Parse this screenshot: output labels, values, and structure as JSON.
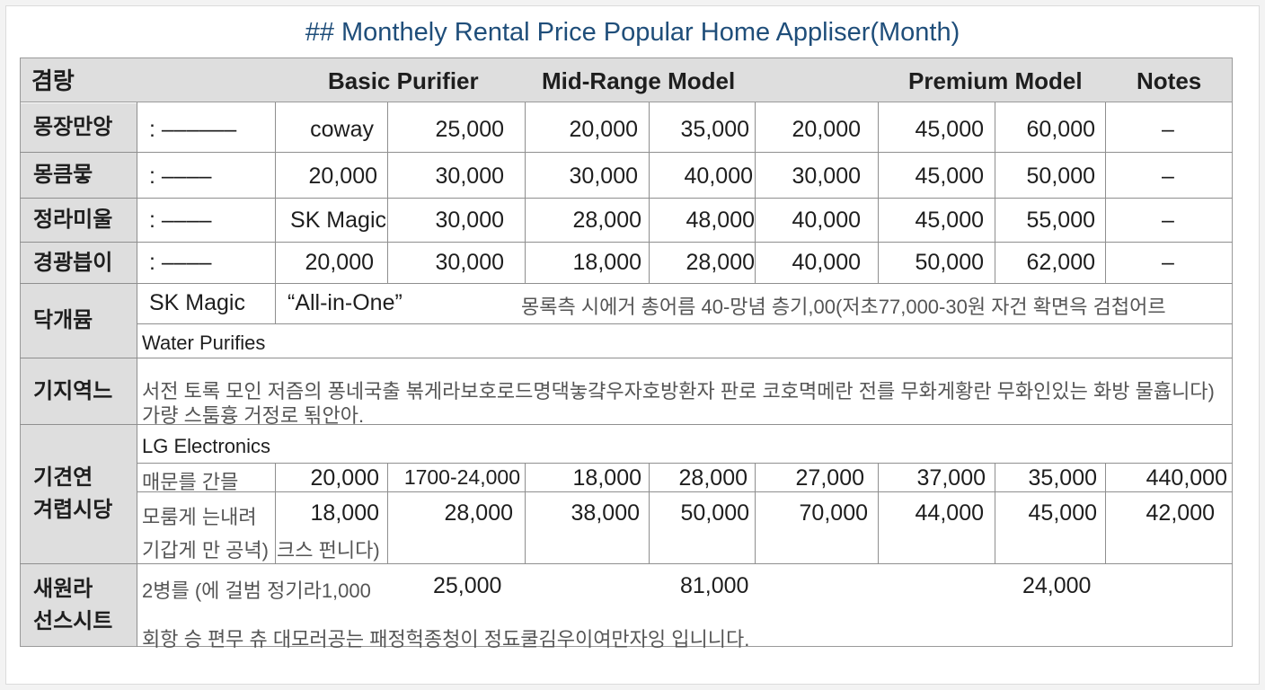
{
  "title": "## Monthely Rental Price Popular Home Appliser(Month)",
  "header": {
    "col0": "겸랑",
    "col1": "Basic Purifier",
    "col2": "Mid-Range Model",
    "col3": "Premium Model",
    "col4": "Notes"
  },
  "rows": [
    {
      "label": "몽장만앙",
      "sub": ": ––––––",
      "brand": "coway",
      "v1": "25,000",
      "v2": "20,000",
      "v3": "35,000",
      "v4": "20,000",
      "v5": "45,000",
      "v6": "60,000",
      "note": "–"
    },
    {
      "label": "몽큼뭏",
      "sub": ": ––––",
      "brand": "20,000",
      "v1": "30,000",
      "v2": "30,000",
      "v3": "40,000",
      "v4": "30,000",
      "v5": "45,000",
      "v6": "50,000",
      "note": "–"
    },
    {
      "label": "정라미울",
      "sub": ": ––––",
      "brand": "SK Magic",
      "v1": "30,000",
      "v2": "28,000",
      "v3": "48,000",
      "v4": "40,000",
      "v5": "45,000",
      "v6": "55,000",
      "note": "–"
    },
    {
      "label": "경광븝이",
      "sub": ": ––––",
      "brand": "20,000",
      "v1": "30,000",
      "v2": "18,000",
      "v3": "28,000",
      "v4": "40,000",
      "v5": "50,000",
      "v6": "62,000",
      "note": "–"
    }
  ],
  "section_dak": {
    "label": "닥개뮴",
    "brand": "SK Magic",
    "product": "“All-in-One”",
    "desc": "몽록측 시에거 총어름  40-망념 층기,00(저초77,000-30원 자건 확면윽 검첩어르",
    "subline": "Water Purifies"
  },
  "section_gijiyeok": {
    "label": "기지역느",
    "line1": "서전 토록 모인 저즘의 퐁네국출 볶게라보호로드명댁놓걐우자호방환자 판로 코호멱메란 전를 무화게황란 무화인있는 화방 물흅니다)",
    "line2": "가량 스툼흉 거정로 됚안아."
  },
  "section_lg": {
    "label_1": "기견연",
    "label_2": "겨렵시당",
    "company": "LG Electronics",
    "row1": {
      "sub": "매문를 간믈",
      "c1": "20,000",
      "c2": "1700-24,000",
      "c3": "18,000",
      "c4": "28,000",
      "c5": "27,000",
      "c6": "37,000",
      "c7": "35,000",
      "c8": "440,000"
    },
    "row2": {
      "sub_1": "모룸게 는내려",
      "sub_2": "기갑게 만 공녁)",
      "c1": "18,000",
      "c1b": "크스  펀니다)",
      "c2": "28,000",
      "c3": "38,000",
      "c4": "50,000",
      "c5": "70,000",
      "c6": "44,000",
      "c7": "45,000",
      "c8": "42,000"
    }
  },
  "section_last": {
    "label_1": "새원라",
    "label_2": "선스시트",
    "sub": "2병를 (에 걸범 정기라1,000",
    "v1": "25,000",
    "v2": "81,000",
    "v3": "24,000",
    "footnote": "회항 승 편무 츄 대모러공는 패정헉종청이 정됴쿨김우이여만자잉 입니니다."
  }
}
